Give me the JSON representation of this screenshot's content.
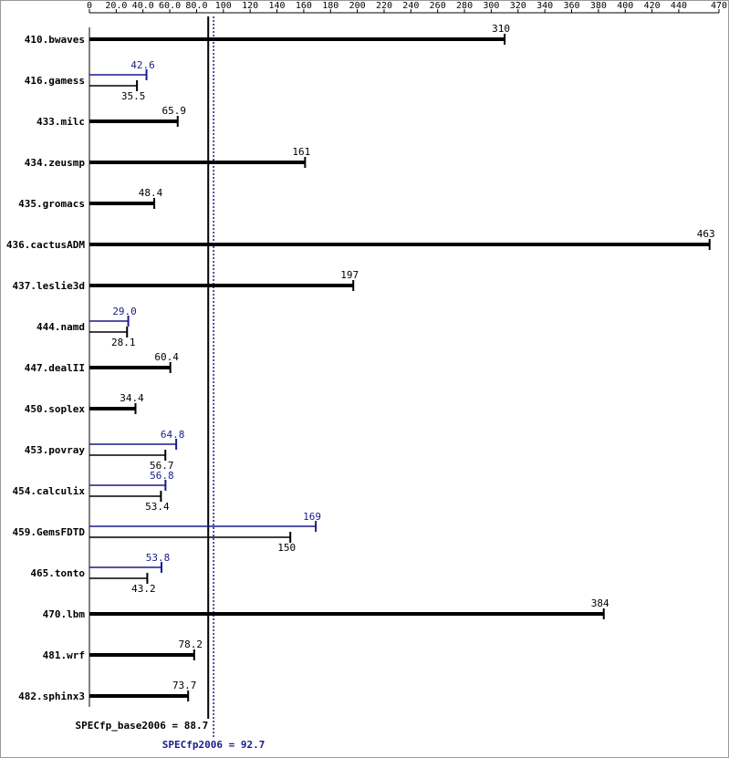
{
  "chart_data": {
    "type": "spec-bar",
    "categories": [
      "410.bwaves",
      "416.gamess",
      "433.milc",
      "434.zeusmp",
      "435.gromacs",
      "436.cactusADM",
      "437.leslie3d",
      "444.namd",
      "447.dealII",
      "450.soplex",
      "453.povray",
      "454.calculix",
      "459.GemsFDTD",
      "465.tonto",
      "470.lbm",
      "481.wrf",
      "482.sphinx3"
    ],
    "base_values": [
      310,
      35.5,
      65.9,
      161,
      48.4,
      463,
      197,
      28.1,
      60.4,
      34.4,
      56.7,
      53.4,
      150,
      43.2,
      384,
      78.2,
      73.7
    ],
    "peak_values": [
      null,
      42.6,
      null,
      null,
      null,
      null,
      null,
      29.0,
      null,
      null,
      64.8,
      56.8,
      169,
      53.8,
      null,
      null,
      null
    ],
    "peak_value_labels": [
      null,
      "42.6",
      null,
      null,
      null,
      null,
      null,
      "29.0",
      null,
      null,
      "64.8",
      "56.8",
      "169",
      "53.8",
      null,
      null,
      null
    ],
    "base_color": "#000000",
    "peak_color": "#1a1a8c",
    "xlim": [
      0,
      470
    ],
    "xticks": [
      0,
      {
        "value": 20,
        "label": "20.0"
      },
      {
        "value": 40,
        "label": "40.0"
      },
      {
        "value": 60,
        "label": "60.0"
      },
      {
        "value": 80,
        "label": "80.0"
      },
      100,
      120,
      140,
      160,
      180,
      200,
      220,
      240,
      260,
      280,
      300,
      320,
      340,
      360,
      380,
      400,
      420,
      440,
      470
    ],
    "reference_lines": [
      {
        "label": "SPECfp_base2006 = 88.7",
        "value": 88.7,
        "color": "#000000",
        "style": "solid"
      },
      {
        "label": "SPECfp2006 = 92.7",
        "value": 92.7,
        "color": "#1a1a8c",
        "style": "dotted"
      }
    ]
  }
}
